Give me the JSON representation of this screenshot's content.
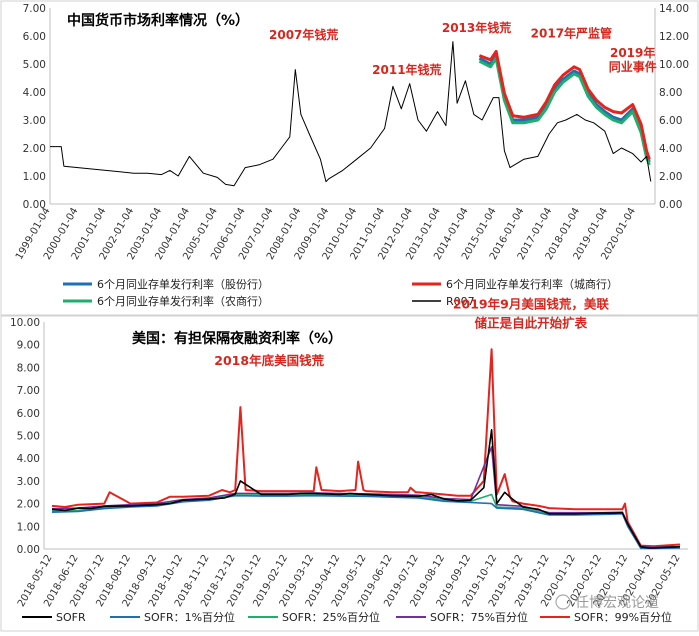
{
  "chart_data": [
    {
      "type": "line",
      "title": "中国货币市场利率情况（%）",
      "y_left": {
        "min": 0,
        "max": 7,
        "ticks": [
          "0.00",
          "1.00",
          "2.00",
          "3.00",
          "4.00",
          "5.00",
          "6.00",
          "7.00"
        ]
      },
      "y_right": {
        "min": 0,
        "max": 14,
        "ticks": [
          "0.00",
          "2.00",
          "4.00",
          "6.00",
          "8.00",
          "10.00",
          "12.00",
          "14.00"
        ]
      },
      "x_ticks": [
        "1999-01-04",
        "2000-01-04",
        "2001-01-04",
        "2002-01-04",
        "2003-01-04",
        "2004-01-04",
        "2005-01-04",
        "2006-01-04",
        "2007-01-04",
        "2008-01-04",
        "2009-01-04",
        "2010-01-04",
        "2011-01-04",
        "2012-01-04",
        "2013-01-04",
        "2014-01-04",
        "2015-01-04",
        "2016-01-04",
        "2017-01-04",
        "2018-01-04",
        "2019-01-04",
        "2020-01-04"
      ],
      "x_range": [
        1999.0,
        2020.7
      ],
      "grid": false,
      "legend_position": "bottom",
      "series": [
        {
          "name": "R007",
          "axis": "left",
          "color": "#000000",
          "x": [
            1999.0,
            1999.4,
            1999.5,
            2000.0,
            2000.5,
            2001.0,
            2001.5,
            2002.0,
            2002.5,
            2003.0,
            2003.3,
            2003.6,
            2004.0,
            2004.5,
            2005.0,
            2005.3,
            2005.6,
            2006.0,
            2006.5,
            2007.0,
            2007.3,
            2007.6,
            2007.8,
            2008.0,
            2008.3,
            2008.7,
            2008.9,
            2009.0,
            2009.5,
            2010.0,
            2010.5,
            2011.0,
            2011.3,
            2011.6,
            2011.9,
            2012.2,
            2012.5,
            2012.9,
            2013.2,
            2013.45,
            2013.6,
            2013.9,
            2014.2,
            2014.5,
            2014.9,
            2015.1,
            2015.3,
            2015.5,
            2016.0,
            2016.5,
            2016.9,
            2017.2,
            2017.5,
            2017.9,
            2018.2,
            2018.5,
            2018.9,
            2019.2,
            2019.5,
            2019.9,
            2020.2,
            2020.4,
            2020.55
          ],
          "y": [
            2.05,
            2.05,
            1.35,
            1.3,
            1.25,
            1.2,
            1.15,
            1.1,
            1.1,
            1.05,
            1.2,
            1.0,
            1.7,
            1.1,
            0.95,
            0.7,
            0.65,
            1.3,
            1.4,
            1.6,
            2.0,
            2.4,
            4.8,
            3.2,
            2.5,
            1.6,
            0.8,
            0.9,
            1.2,
            1.6,
            2.0,
            2.7,
            4.2,
            3.4,
            4.3,
            3.0,
            2.6,
            3.3,
            2.8,
            5.8,
            3.6,
            4.4,
            3.2,
            3.0,
            3.8,
            3.8,
            1.9,
            1.3,
            1.6,
            1.7,
            2.5,
            2.9,
            3.0,
            3.2,
            3.0,
            2.9,
            2.6,
            1.8,
            2.0,
            1.8,
            1.5,
            1.7,
            0.8
          ]
        },
        {
          "name": "6个月同业存单发行利率（股份行）",
          "axis": "right",
          "color": "#1f6fb5",
          "x": [
            2014.4,
            2014.8,
            2015.0,
            2015.3,
            2015.6,
            2016.0,
            2016.5,
            2016.8,
            2017.1,
            2017.4,
            2017.8,
            2018.0,
            2018.3,
            2018.6,
            2018.9,
            2019.2,
            2019.5,
            2019.9,
            2020.2,
            2020.4,
            2020.5
          ],
          "y": [
            10.4,
            10.0,
            10.6,
            7.6,
            6.0,
            6.0,
            6.2,
            7.0,
            8.2,
            8.9,
            9.5,
            9.3,
            7.9,
            7.1,
            6.6,
            6.2,
            6.0,
            6.8,
            5.3,
            3.5,
            3.0
          ]
        },
        {
          "name": "6个月同业存单发行利率（城商行）",
          "axis": "right",
          "color": "#e8231e",
          "x": [
            2014.4,
            2014.8,
            2015.0,
            2015.3,
            2015.6,
            2016.0,
            2016.5,
            2016.8,
            2017.1,
            2017.4,
            2017.8,
            2018.0,
            2018.3,
            2018.6,
            2018.9,
            2019.2,
            2019.5,
            2019.9,
            2020.2,
            2020.4,
            2020.5
          ],
          "y": [
            10.6,
            10.3,
            10.9,
            7.9,
            6.3,
            6.2,
            6.4,
            7.3,
            8.5,
            9.2,
            9.8,
            9.6,
            8.2,
            7.4,
            6.9,
            6.6,
            6.5,
            7.1,
            5.7,
            3.8,
            3.2
          ]
        },
        {
          "name": "6个月同业存单发行利率（农商行）",
          "axis": "right",
          "color": "#1fae6e",
          "x": [
            2014.4,
            2014.8,
            2015.0,
            2015.3,
            2015.6,
            2016.0,
            2016.5,
            2016.8,
            2017.1,
            2017.4,
            2017.8,
            2018.0,
            2018.3,
            2018.6,
            2018.9,
            2019.2,
            2019.5,
            2019.9,
            2020.2,
            2020.4,
            2020.5
          ],
          "y": [
            10.2,
            9.8,
            10.4,
            7.4,
            5.8,
            5.8,
            6.0,
            6.8,
            8.0,
            8.7,
            9.3,
            9.1,
            7.7,
            6.9,
            6.4,
            6.0,
            5.8,
            6.6,
            5.1,
            3.3,
            2.8
          ]
        }
      ],
      "annotations": [
        {
          "text": "2007年钱荒",
          "x": 2008.1,
          "y": 5.9
        },
        {
          "text": "2011年钱荒",
          "x": 2011.8,
          "y": 4.65
        },
        {
          "text": "2013年钱荒",
          "x": 2014.3,
          "y": 6.15
        },
        {
          "text": "2017年严监管",
          "x": 2017.7,
          "y": 5.95
        },
        {
          "text": "2019年",
          "x": 2019.9,
          "y": 5.25
        },
        {
          "text": "同业事件",
          "x": 2019.9,
          "y": 4.75
        }
      ]
    },
    {
      "type": "line",
      "title": "美国：有担保隔夜融资利率（%）",
      "y": {
        "min": 0,
        "max": 10,
        "ticks": [
          "0.00",
          "1.00",
          "2.00",
          "3.00",
          "4.00",
          "5.00",
          "6.00",
          "7.00",
          "8.00",
          "9.00",
          "10.00"
        ]
      },
      "x_ticks": [
        "2018-05-12",
        "2018-06-12",
        "2018-07-12",
        "2018-08-12",
        "2018-09-12",
        "2018-10-12",
        "2018-11-12",
        "2018-12-12",
        "2019-01-12",
        "2019-02-12",
        "2019-03-12",
        "2019-04-12",
        "2019-05-12",
        "2019-06-12",
        "2019-07-12",
        "2019-08-12",
        "2019-09-12",
        "2019-10-12",
        "2019-11-12",
        "2019-12-12",
        "2020-01-12",
        "2020-02-12",
        "2020-03-12",
        "2020-04-12",
        "2020-05-12"
      ],
      "x_range": [
        0,
        24
      ],
      "grid": false,
      "legend_position": "bottom",
      "series": [
        {
          "name": "SOFR",
          "color": "#000000",
          "x": [
            0,
            0.5,
            1,
            1.5,
            2,
            3,
            4,
            4.5,
            5,
            6,
            6.6,
            7,
            7.2,
            8,
            9,
            9.5,
            10,
            11,
            11.4,
            11.7,
            12,
            13,
            14,
            14.5,
            15,
            15.5,
            16,
            16.5,
            16.8,
            17,
            17.3,
            17.6,
            18,
            18.6,
            19,
            19.5,
            20,
            21,
            21.5,
            21.8,
            22,
            22.5,
            22.8,
            23,
            24
          ],
          "y": [
            1.75,
            1.7,
            1.8,
            1.78,
            1.88,
            1.9,
            1.95,
            2.0,
            2.15,
            2.2,
            2.25,
            2.42,
            3.0,
            2.4,
            2.4,
            2.45,
            2.45,
            2.4,
            2.45,
            2.42,
            2.4,
            2.35,
            2.32,
            2.4,
            2.2,
            2.12,
            2.15,
            2.7,
            5.25,
            2.0,
            2.5,
            2.2,
            1.85,
            1.75,
            1.55,
            1.55,
            1.55,
            1.58,
            1.58,
            1.6,
            1.1,
            0.1,
            0.05,
            0.05,
            0.1
          ]
        },
        {
          "name": "SOFR：1%百分位",
          "color": "#1f6fb5",
          "x": [
            0,
            1,
            2,
            3,
            4,
            5,
            6,
            7,
            8,
            9,
            10,
            11,
            12,
            13,
            14,
            15,
            16,
            16.8,
            17,
            18,
            19,
            20,
            21,
            21.8,
            22,
            22.5,
            23,
            24
          ],
          "y": [
            1.62,
            1.65,
            1.78,
            1.85,
            1.9,
            2.08,
            2.15,
            2.35,
            2.33,
            2.33,
            2.35,
            2.33,
            2.32,
            2.28,
            2.25,
            2.1,
            2.05,
            2.0,
            1.8,
            1.75,
            1.5,
            1.5,
            1.52,
            1.55,
            1.0,
            0.03,
            0.02,
            0.05
          ]
        },
        {
          "name": "SOFR：25%百分位",
          "color": "#1fae6e",
          "x": [
            0,
            1,
            2,
            3,
            4,
            5,
            6,
            7,
            8,
            9,
            10,
            11,
            12,
            13,
            14,
            15,
            16,
            16.8,
            17,
            18,
            19,
            20,
            21,
            21.8,
            22,
            22.5,
            23,
            24
          ],
          "y": [
            1.68,
            1.7,
            1.83,
            1.88,
            1.93,
            2.12,
            2.18,
            2.38,
            2.38,
            2.38,
            2.4,
            2.38,
            2.37,
            2.33,
            2.3,
            2.15,
            2.1,
            2.4,
            1.85,
            1.8,
            1.53,
            1.53,
            1.55,
            1.57,
            1.05,
            0.05,
            0.04,
            0.07
          ]
        },
        {
          "name": "SOFR：75%百分位",
          "color": "#7030a0",
          "x": [
            0,
            1,
            2,
            3,
            4,
            5,
            6,
            7,
            8,
            9,
            10,
            11,
            12,
            13,
            14,
            15,
            16,
            16.8,
            17,
            18,
            19,
            20,
            21,
            21.8,
            22,
            22.5,
            23,
            24
          ],
          "y": [
            1.77,
            1.8,
            1.9,
            1.95,
            2.0,
            2.18,
            2.25,
            2.45,
            2.45,
            2.45,
            2.47,
            2.45,
            2.43,
            2.4,
            2.37,
            2.22,
            2.18,
            4.5,
            1.95,
            1.88,
            1.6,
            1.6,
            1.6,
            1.62,
            1.12,
            0.1,
            0.08,
            0.1
          ]
        },
        {
          "name": "SOFR：99%百分位",
          "color": "#e8231e",
          "x": [
            0,
            0.5,
            1,
            2,
            2.2,
            3,
            4,
            4.5,
            5,
            6,
            6.5,
            6.8,
            7,
            7.2,
            7.4,
            8,
            9,
            10,
            10.1,
            10.3,
            11,
            11.6,
            11.7,
            11.9,
            12,
            13,
            13.6,
            13.7,
            13.9,
            14,
            15,
            15.5,
            16,
            16.5,
            16.8,
            17,
            17.3,
            17.5,
            17.6,
            18,
            18.6,
            19,
            20,
            21,
            21.5,
            21.8,
            21.9,
            22,
            22.5,
            23,
            24
          ],
          "y": [
            1.9,
            1.85,
            1.95,
            2.0,
            2.5,
            2.0,
            2.05,
            2.3,
            2.3,
            2.35,
            2.6,
            2.5,
            2.6,
            6.25,
            2.6,
            2.55,
            2.55,
            2.55,
            3.6,
            2.6,
            2.55,
            2.6,
            3.85,
            2.6,
            2.55,
            2.5,
            2.5,
            2.7,
            2.5,
            2.5,
            2.4,
            2.35,
            2.35,
            3.0,
            8.8,
            2.4,
            3.3,
            2.3,
            2.1,
            2.0,
            1.9,
            1.8,
            1.75,
            1.75,
            1.75,
            1.75,
            2.0,
            1.2,
            0.15,
            0.12,
            0.2
          ]
        }
      ],
      "annotations": [
        {
          "text": "2018年底美国钱荒",
          "x": 8.3,
          "y": 8.1
        },
        {
          "text": "2019年9月美国钱荒，美联",
          "x": 18.3,
          "y": 10.6
        },
        {
          "text": "储正是自此开始扩表",
          "x": 18.3,
          "y": 9.75
        }
      ]
    }
  ],
  "watermark": "任博宏观论道"
}
